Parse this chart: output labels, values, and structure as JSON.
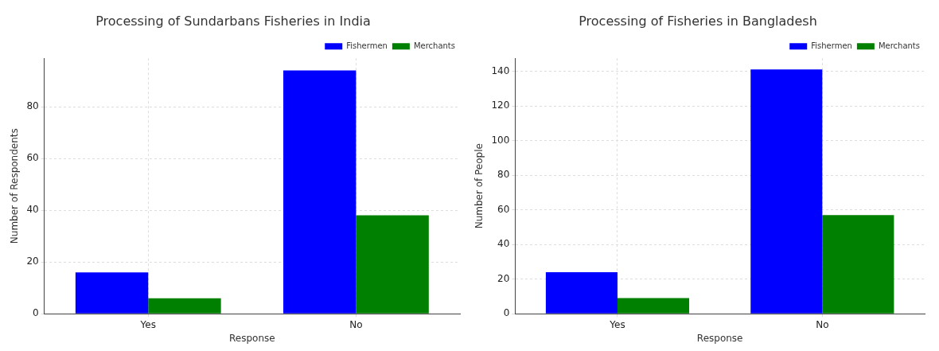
{
  "chart_data": [
    {
      "type": "bar",
      "title": "Processing of Sundarbans Fisheries in India",
      "xlabel": "Response",
      "ylabel": "Number of Respondents",
      "categories": [
        "Yes",
        "No"
      ],
      "series": [
        {
          "name": "Fishermen",
          "color": "#0000ff",
          "values": [
            16,
            94
          ]
        },
        {
          "name": "Merchants",
          "color": "#008000",
          "values": [
            6,
            38
          ]
        }
      ],
      "ylim": [
        0,
        98.7
      ],
      "yticks": [
        0,
        20,
        40,
        60,
        80
      ],
      "grid": true,
      "legend": "top right"
    },
    {
      "type": "bar",
      "title": "Processing of Fisheries in Bangladesh",
      "xlabel": "Response",
      "ylabel": "Number of People",
      "categories": [
        "Yes",
        "No"
      ],
      "series": [
        {
          "name": "Fishermen",
          "color": "#0000ff",
          "values": [
            24,
            141
          ]
        },
        {
          "name": "Merchants",
          "color": "#008000",
          "values": [
            9,
            57
          ]
        }
      ],
      "ylim": [
        0,
        147.5
      ],
      "yticks": [
        0,
        20,
        40,
        60,
        80,
        100,
        120,
        140
      ],
      "grid": true,
      "legend": "top right"
    }
  ]
}
